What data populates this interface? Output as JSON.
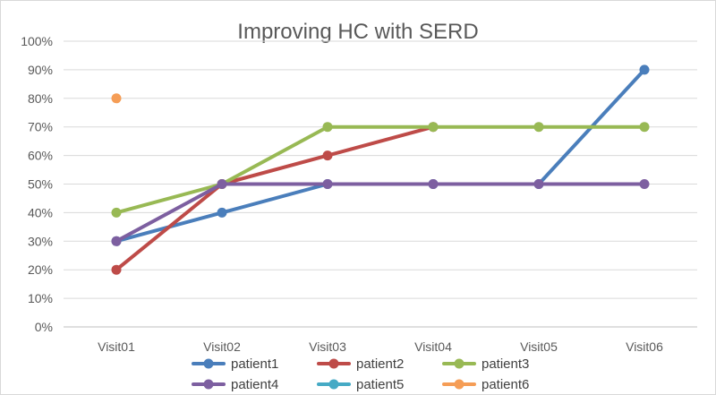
{
  "chart_data": {
    "type": "line",
    "title": "Improving HC with SERD",
    "xlabel": "",
    "ylabel": "",
    "categories": [
      "Visit01",
      "Visit02",
      "Visit03",
      "Visit04",
      "Visit05",
      "Visit06"
    ],
    "ylim": [
      0,
      100
    ],
    "yticks": [
      "0%",
      "10%",
      "20%",
      "30%",
      "40%",
      "50%",
      "60%",
      "70%",
      "80%",
      "90%",
      "100%"
    ],
    "grid": true,
    "legend_position": "bottom",
    "series": [
      {
        "name": "patient1",
        "color": "#4a7ebb",
        "values": [
          30,
          40,
          50,
          50,
          50,
          90
        ]
      },
      {
        "name": "patient2",
        "color": "#be4b48",
        "values": [
          20,
          50,
          60,
          70,
          null,
          null
        ]
      },
      {
        "name": "patient3",
        "color": "#98b954",
        "values": [
          40,
          50,
          70,
          70,
          70,
          70
        ]
      },
      {
        "name": "patient4",
        "color": "#7d5fa0",
        "values": [
          30,
          50,
          50,
          50,
          50,
          50
        ]
      },
      {
        "name": "patient5",
        "color": "#46aac5",
        "values": [
          null,
          null,
          null,
          null,
          null,
          null
        ]
      },
      {
        "name": "patient6",
        "color": "#f59d56",
        "values": [
          80,
          null,
          null,
          null,
          null,
          null
        ]
      }
    ]
  }
}
